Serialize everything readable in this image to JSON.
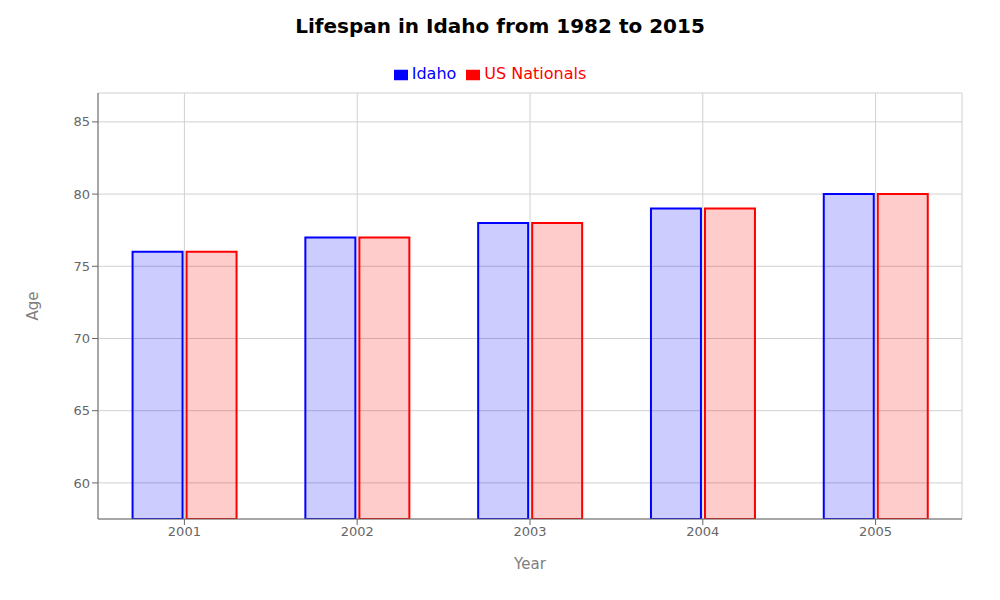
{
  "chart_data": {
    "type": "bar",
    "title": "Lifespan in Idaho from 1982 to 2015",
    "xlabel": "Year",
    "ylabel": "Age",
    "categories": [
      "2001",
      "2002",
      "2003",
      "2004",
      "2005"
    ],
    "series": [
      {
        "name": "Idaho",
        "color": "#0000ff",
        "values": [
          76,
          77,
          78,
          79,
          80
        ]
      },
      {
        "name": "US Nationals",
        "color": "#ff0000",
        "values": [
          76,
          77,
          78,
          79,
          80
        ]
      }
    ],
    "ylim": [
      57.5,
      87
    ],
    "yticks": [
      60,
      65,
      70,
      75,
      80,
      85
    ],
    "grid": true,
    "legend": "top"
  }
}
